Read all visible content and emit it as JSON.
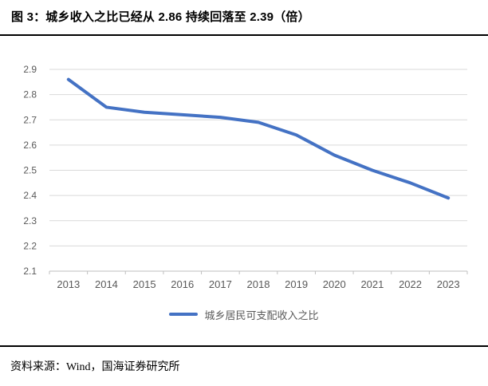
{
  "header": {
    "title": "图 3：城乡收入之比已经从 2.86 持续回落至 2.39（倍）"
  },
  "footer": {
    "source": "资料来源：Wind，国海证券研究所"
  },
  "chart_data": {
    "type": "line",
    "title": "",
    "xlabel": "",
    "ylabel": "",
    "categories": [
      "2013",
      "2014",
      "2015",
      "2016",
      "2017",
      "2018",
      "2019",
      "2020",
      "2021",
      "2022",
      "2023"
    ],
    "series": [
      {
        "name": "城乡居民可支配收入之比",
        "values": [
          2.86,
          2.75,
          2.73,
          2.72,
          2.71,
          2.69,
          2.64,
          2.56,
          2.5,
          2.45,
          2.39
        ],
        "color": "#4472C4"
      }
    ],
    "ylim": [
      2.1,
      2.9
    ],
    "yticks": [
      "2.1",
      "2.2",
      "2.3",
      "2.4",
      "2.5",
      "2.6",
      "2.7",
      "2.8",
      "2.9"
    ],
    "grid": true,
    "legend_position": "bottom",
    "colors": {
      "grid": "#D9D9D9",
      "axis": "#BFBFBF",
      "tick_label": "#595959",
      "line": "#4472C4"
    }
  }
}
